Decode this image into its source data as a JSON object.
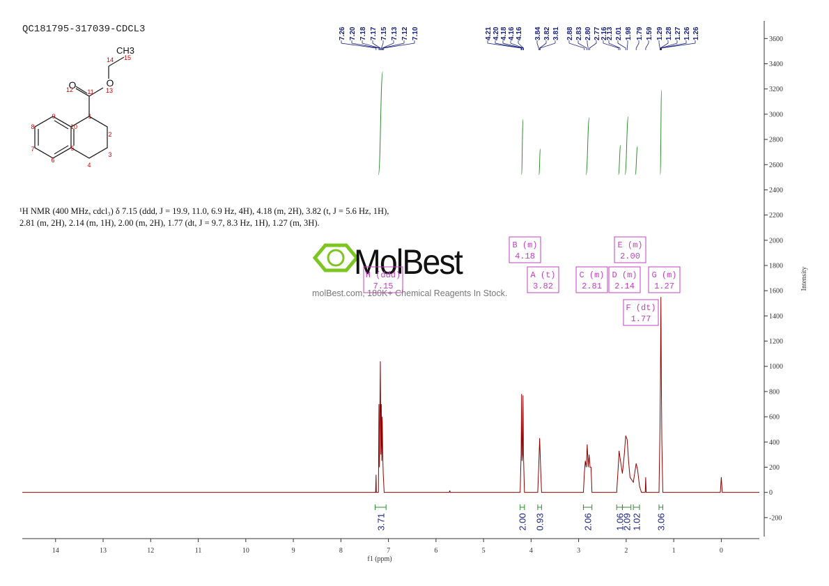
{
  "chart_data": {
    "type": "line",
    "title": "QC181795-317039-CDCL3",
    "description": [
      "¹H NMR (400 MHz, cdcl₃) δ 7.15 (ddd, J = 19.9, 11.0, 6.9 Hz, 4H), 4.18 (m, 2H), 3.82 (t, J = 5.6 Hz, 1H),",
      "2.81 (m, 2H), 2.14 (m, 1H), 2.00 (m, 2H), 1.77 (dt, J = 9.7, 8.3 Hz, 1H), 1.27 (m, 3H)."
    ],
    "xlabel": "f1 (ppm)",
    "ylabel": "Intensity",
    "xlim": [
      14.7,
      -0.8
    ],
    "ylim": [
      -350,
      3740
    ],
    "xticks": [
      14,
      13,
      12,
      11,
      10,
      9,
      8,
      7,
      6,
      5,
      4,
      3,
      2,
      1,
      0
    ],
    "yticks": [
      -200,
      0,
      200,
      400,
      600,
      800,
      1000,
      1200,
      1400,
      1600,
      1800,
      2000,
      2200,
      2400,
      2600,
      2800,
      3000,
      3200,
      3400,
      3600
    ],
    "x": [
      14.7,
      7.3,
      7.27,
      7.26,
      7.255,
      7.21,
      7.2,
      7.19,
      7.18,
      7.17,
      7.16,
      7.15,
      7.14,
      7.13,
      7.12,
      7.11,
      7.09,
      5.72,
      5.71,
      5.7,
      4.23,
      4.21,
      4.2,
      4.19,
      4.18,
      4.17,
      4.16,
      4.14,
      3.86,
      3.84,
      3.82,
      3.8,
      3.78,
      2.9,
      2.88,
      2.86,
      2.84,
      2.82,
      2.8,
      2.78,
      2.76,
      2.74,
      2.72,
      2.2,
      2.16,
      2.15,
      2.12,
      2.08,
      2.04,
      2.01,
      1.98,
      1.95,
      1.92,
      1.85,
      1.79,
      1.76,
      1.72,
      1.68,
      1.6,
      1.59,
      1.58,
      1.31,
      1.29,
      1.28,
      1.27,
      1.26,
      1.25,
      1.23,
      0.02,
      0,
      -0.02,
      -0.8
    ],
    "series": [
      {
        "color": "#8b0000",
        "values": [
          0,
          0,
          0,
          140,
          0,
          0,
          700,
          200,
          650,
          1040,
          300,
          700,
          250,
          600,
          300,
          150,
          0,
          0,
          15,
          0,
          0,
          300,
          780,
          250,
          300,
          770,
          300,
          0,
          0,
          200,
          430,
          200,
          0,
          0,
          150,
          250,
          200,
          380,
          200,
          300,
          200,
          200,
          0,
          0,
          250,
          330,
          250,
          150,
          300,
          450,
          420,
          250,
          120,
          80,
          230,
          180,
          50,
          0,
          0,
          120,
          0,
          0,
          500,
          880,
          1550,
          850,
          400,
          0,
          0,
          120,
          0,
          0
        ]
      }
    ],
    "peak_labels": [
      {
        "value": 7.26,
        "label": "7.26"
      },
      {
        "value": 7.2,
        "label": "7.20"
      },
      {
        "value": 7.18,
        "label": "7.18"
      },
      {
        "value": 7.17,
        "label": "7.17"
      },
      {
        "value": 7.15,
        "label": "7.15"
      },
      {
        "value": 7.13,
        "label": "7.13"
      },
      {
        "value": 7.12,
        "label": "7.12"
      },
      {
        "value": 7.1,
        "label": "7.10"
      },
      {
        "value": 4.21,
        "label": "4.21"
      },
      {
        "value": 4.2,
        "label": "4.20"
      },
      {
        "value": 4.18,
        "label": "4.18"
      },
      {
        "value": 4.16,
        "label": "4.16"
      },
      {
        "value": 4.16,
        "label": "4.16"
      },
      {
        "value": 3.84,
        "label": "3.84"
      },
      {
        "value": 3.82,
        "label": "3.82"
      },
      {
        "value": 3.81,
        "label": "3.81"
      },
      {
        "value": 2.88,
        "label": "2.88"
      },
      {
        "value": 2.83,
        "label": "2.83"
      },
      {
        "value": 2.8,
        "label": "2.80"
      },
      {
        "value": 2.77,
        "label": "2.77"
      },
      {
        "value": 2.16,
        "label": "2.16"
      },
      {
        "value": 2.13,
        "label": "2.13"
      },
      {
        "value": 2.01,
        "label": "2.01"
      },
      {
        "value": 1.98,
        "label": "1.98"
      },
      {
        "value": 1.79,
        "label": "1.79"
      },
      {
        "value": 1.59,
        "label": "1.59"
      },
      {
        "value": 1.29,
        "label": "1.29"
      },
      {
        "value": 1.28,
        "label": "1.28"
      },
      {
        "value": 1.27,
        "label": "1.27"
      },
      {
        "value": 1.26,
        "label": "1.26"
      },
      {
        "value": 1.26,
        "label": "1.26"
      }
    ],
    "multiplets": [
      {
        "name": "H (ddd)",
        "shift": "7.15"
      },
      {
        "name": "B (m)",
        "shift": "4.18"
      },
      {
        "name": "A (t)",
        "shift": "3.82"
      },
      {
        "name": "C (m)",
        "shift": "2.81"
      },
      {
        "name": "D (m)",
        "shift": "2.14"
      },
      {
        "name": "E (m)",
        "shift": "2.00"
      },
      {
        "name": "F (dt)",
        "shift": "1.77"
      },
      {
        "name": "G (m)",
        "shift": "1.27"
      }
    ],
    "integrals": [
      {
        "value": 3.71,
        "label": "3.71",
        "from": 7.28,
        "to": 7.05
      },
      {
        "value": 2,
        "label": "2.00",
        "from": 4.23,
        "to": 4.14
      },
      {
        "value": 0.93,
        "label": "0.93",
        "from": 3.86,
        "to": 3.78
      },
      {
        "value": 2.06,
        "label": "2.06",
        "from": 2.9,
        "to": 2.72
      },
      {
        "value": 1.06,
        "label": "1.06",
        "from": 2.2,
        "to": 2.08
      },
      {
        "value": 2.09,
        "label": "2.09",
        "from": 2.08,
        "to": 1.9
      },
      {
        "value": 1.02,
        "label": "1.02",
        "from": 1.85,
        "to": 1.72
      },
      {
        "value": 3.06,
        "label": "3.06",
        "from": 1.31,
        "to": 1.23
      }
    ],
    "watermark": {
      "logo": "MolBest",
      "tagline": "molBest.com, 180K+ Chemical Reagents In Stock."
    },
    "molecule": {
      "atoms": [
        "CH3",
        "O",
        "O",
        "1",
        "2",
        "3",
        "4",
        "5",
        "6",
        "7",
        "8",
        "9",
        "10",
        "11",
        "12",
        "13",
        "14",
        "15"
      ]
    }
  }
}
